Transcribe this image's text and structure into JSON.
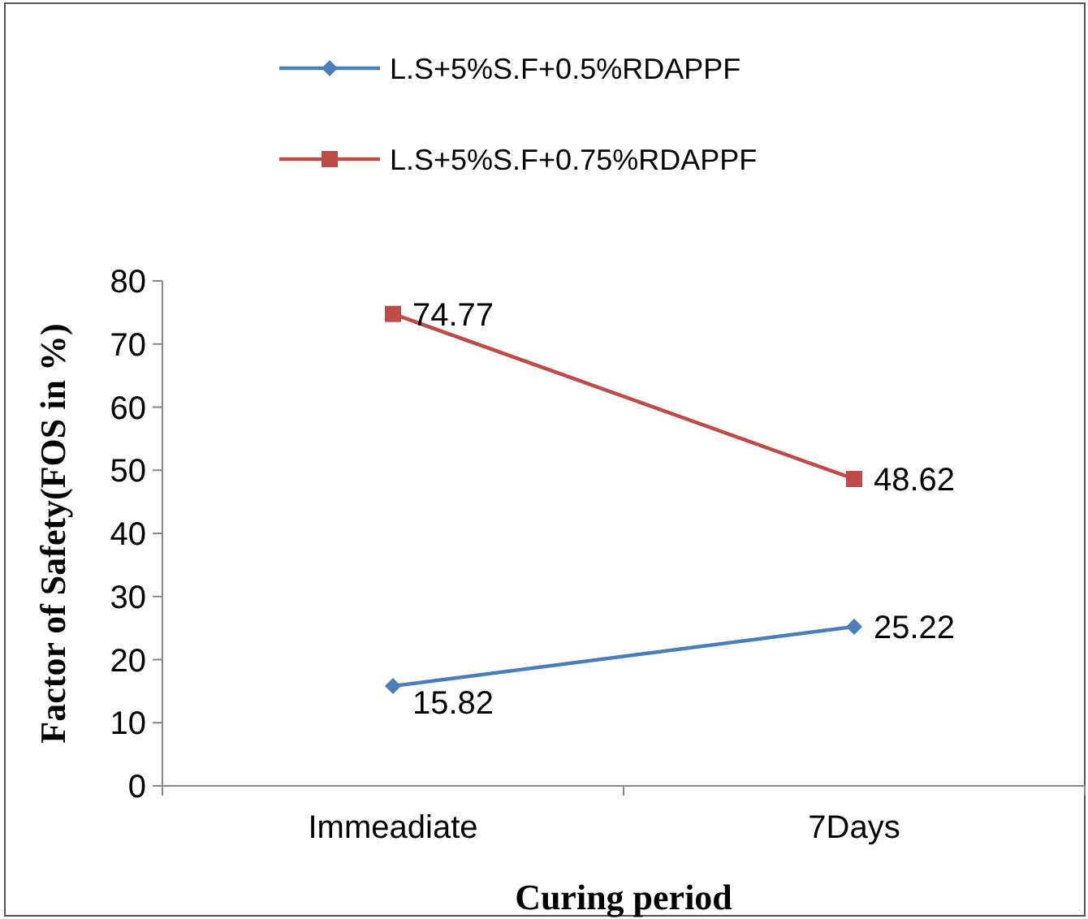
{
  "chart_data": {
    "type": "line",
    "xlabel": "Curing period",
    "ylabel": "Factor of Safety(FOS in %)",
    "categories": [
      "Immeadiate",
      "7Days"
    ],
    "series": [
      {
        "name": "L.S+5%S.F+0.5%RDAPPF",
        "color": "#4a7ebb",
        "values": [
          15.82,
          25.22
        ],
        "marker": "diamond"
      },
      {
        "name": "L.S+5%S.F+0.75%RDAPPF",
        "color": "#be4b48",
        "values": [
          74.77,
          48.62
        ],
        "marker": "square"
      }
    ],
    "ylim": [
      0,
      80
    ],
    "yticks": [
      0,
      10,
      20,
      30,
      40,
      50,
      60,
      70,
      80
    ],
    "grid": false,
    "legend": "top",
    "data_labels": true,
    "line_style": "solid"
  }
}
